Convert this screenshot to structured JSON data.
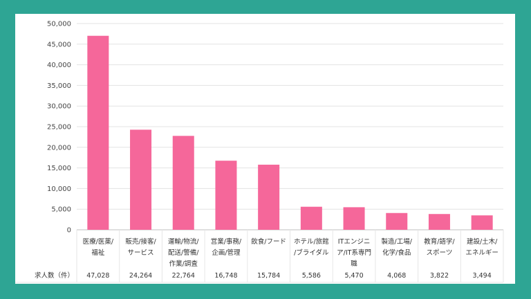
{
  "chart_data": {
    "type": "bar",
    "categories": [
      [
        "医療/医薬/",
        "福祉"
      ],
      [
        "販売/接客/",
        "サービス"
      ],
      [
        "運輸/物流/",
        "配送/警備/",
        "作業/調査"
      ],
      [
        "営業/事務/",
        "企画/管理"
      ],
      [
        "飲食/フード"
      ],
      [
        "ホテル/旅館",
        "/ブライダル"
      ],
      [
        "ITエンジニ",
        "ア/IT系専門",
        "職"
      ],
      [
        "製造/工場/",
        "化学/食品"
      ],
      [
        "教育/語学/",
        "スポーツ"
      ],
      [
        "建設/土木/",
        "エネルギー"
      ]
    ],
    "values": [
      47028,
      24264,
      22764,
      16748,
      15784,
      5586,
      5470,
      4068,
      3822,
      3494
    ],
    "value_labels": [
      "47,028",
      "24,264",
      "22,764",
      "16,748",
      "15,784",
      "5,586",
      "5,470",
      "4,068",
      "3,822",
      "3,494"
    ],
    "row_label": "求人数（件）",
    "y_ticks": [
      "0",
      "5,000",
      "10,000",
      "15,000",
      "20,000",
      "25,000",
      "30,000",
      "35,000",
      "40,000",
      "45,000",
      "50,000"
    ],
    "ylim": [
      0,
      50000
    ],
    "bar_color": "#f5679a",
    "grid": true,
    "legend": "none"
  }
}
